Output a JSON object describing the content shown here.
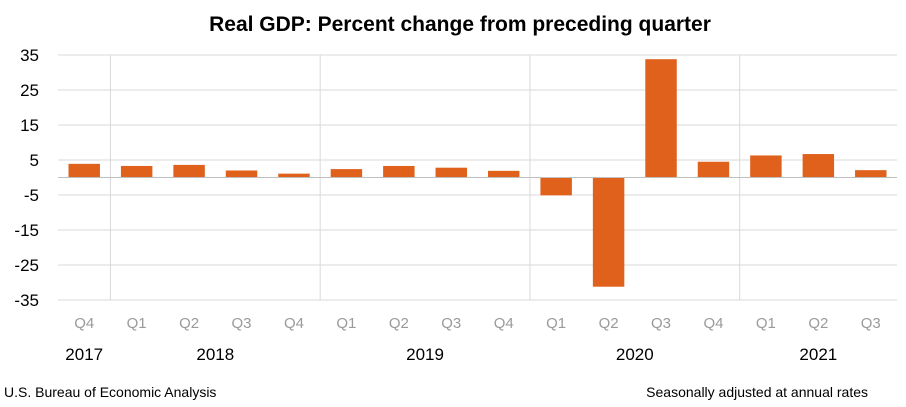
{
  "chart_data": {
    "type": "bar",
    "title": "Real GDP:  Percent change from preceding quarter",
    "categories": [
      "Q4",
      "Q1",
      "Q2",
      "Q3",
      "Q4",
      "Q1",
      "Q2",
      "Q3",
      "Q4",
      "Q1",
      "Q2",
      "Q3",
      "Q4",
      "Q1",
      "Q2",
      "Q3"
    ],
    "years": [
      "2017",
      "2018",
      "2019",
      "2020",
      "2021"
    ],
    "values": [
      3.9,
      3.3,
      3.6,
      2.0,
      1.1,
      2.4,
      3.3,
      2.8,
      1.9,
      -5.1,
      -31.2,
      33.8,
      4.5,
      6.3,
      6.7,
      2.1
    ],
    "yticks": [
      "35",
      "25",
      "15",
      "5",
      "-5",
      "-15",
      "-25",
      "-35"
    ],
    "ylim": [
      -35,
      35
    ],
    "bar_color": "#E0611C",
    "grid": true,
    "xlabel": "",
    "ylabel": ""
  },
  "footer": {
    "source": "U.S. Bureau of Economic Analysis",
    "note": "Seasonally adjusted at annual rates"
  }
}
